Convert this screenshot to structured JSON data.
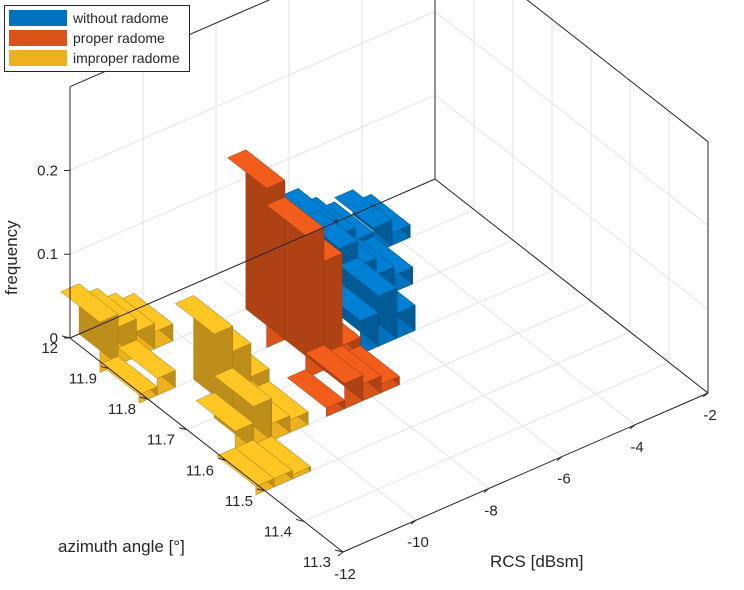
{
  "chart_data": {
    "type": "bar3d",
    "title": "",
    "xlabel": "RCS [dBsm]",
    "ylabel": "azimuth angle [°]",
    "zlabel": "frequency",
    "x_ticks": [
      "-12",
      "-10",
      "-8",
      "-6",
      "-4",
      "-2"
    ],
    "y_ticks": [
      "11.3",
      "11.4",
      "11.5",
      "11.6",
      "11.7",
      "11.8",
      "11.9",
      "12"
    ],
    "z_ticks": [
      "0",
      "0.1",
      "0.2"
    ],
    "xlim": [
      -12,
      -2
    ],
    "ylim": [
      11.3,
      12
    ],
    "zlim": [
      0,
      0.3
    ],
    "grid": true,
    "legend_position": "top-left",
    "series": [
      {
        "name": "without radome",
        "color": "#0072BD",
        "bars": [
          {
            "rcs": -7.5,
            "azimuth": 11.75,
            "frequency": 0.02
          },
          {
            "rcs": -7.0,
            "azimuth": 11.75,
            "frequency": 0.04
          },
          {
            "rcs": -6.5,
            "azimuth": 11.75,
            "frequency": 0.06
          },
          {
            "rcs": -6.0,
            "azimuth": 11.75,
            "frequency": 0.03
          },
          {
            "rcs": -6.5,
            "azimuth": 11.85,
            "frequency": 0.08
          },
          {
            "rcs": -6.0,
            "azimuth": 11.85,
            "frequency": 0.05
          },
          {
            "rcs": -5.5,
            "azimuth": 11.85,
            "frequency": 0.03
          },
          {
            "rcs": -5.0,
            "azimuth": 11.85,
            "frequency": 0.02
          },
          {
            "rcs": -6.0,
            "azimuth": 11.95,
            "frequency": 0.06
          },
          {
            "rcs": -5.5,
            "azimuth": 11.95,
            "frequency": 0.04
          },
          {
            "rcs": -5.0,
            "azimuth": 11.95,
            "frequency": 0.025
          },
          {
            "rcs": -4.5,
            "azimuth": 11.95,
            "frequency": 0.03
          },
          {
            "rcs": -4.0,
            "azimuth": 11.95,
            "frequency": 0.015
          }
        ]
      },
      {
        "name": "proper radome",
        "color": "#D95319",
        "bars": [
          {
            "rcs": -9.0,
            "azimuth": 11.65,
            "frequency": 0.01
          },
          {
            "rcs": -8.5,
            "azimuth": 11.65,
            "frequency": 0.03
          },
          {
            "rcs": -8.0,
            "azimuth": 11.65,
            "frequency": 0.02
          },
          {
            "rcs": -7.5,
            "azimuth": 11.65,
            "frequency": 0.01
          },
          {
            "rcs": -8.5,
            "azimuth": 11.75,
            "frequency": 0.17
          },
          {
            "rcs": -8.0,
            "azimuth": 11.75,
            "frequency": 0.13
          },
          {
            "rcs": -7.5,
            "azimuth": 11.75,
            "frequency": 0.02
          },
          {
            "rcs": -8.5,
            "azimuth": 11.85,
            "frequency": 0.19
          },
          {
            "rcs": -8.0,
            "azimuth": 11.85,
            "frequency": 0.14
          }
        ]
      },
      {
        "name": "improper radome",
        "color": "#EDB120",
        "bars": [
          {
            "rcs": -12.0,
            "azimuth": 11.55,
            "frequency": 0.01
          },
          {
            "rcs": -11.5,
            "azimuth": 11.55,
            "frequency": 0.01
          },
          {
            "rcs": -11.0,
            "azimuth": 11.55,
            "frequency": 0.005
          },
          {
            "rcs": -11.5,
            "azimuth": 11.65,
            "frequency": 0.03
          },
          {
            "rcs": -11.0,
            "azimuth": 11.65,
            "frequency": 0.05
          },
          {
            "rcs": -10.5,
            "azimuth": 11.65,
            "frequency": 0.02
          },
          {
            "rcs": -10.0,
            "azimuth": 11.65,
            "frequency": 0.015
          },
          {
            "rcs": -11.0,
            "azimuth": 11.75,
            "frequency": 0.1
          },
          {
            "rcs": -10.5,
            "azimuth": 11.75,
            "frequency": 0.07
          },
          {
            "rcs": -10.0,
            "azimuth": 11.75,
            "frequency": 0.03
          },
          {
            "rcs": -12.0,
            "azimuth": 11.85,
            "frequency": 0.01
          },
          {
            "rcs": -11.5,
            "azimuth": 11.85,
            "frequency": 0.02
          },
          {
            "rcs": -12.0,
            "azimuth": 11.95,
            "frequency": 0.06
          },
          {
            "rcs": -11.5,
            "azimuth": 11.95,
            "frequency": 0.045
          },
          {
            "rcs": -11.0,
            "azimuth": 11.95,
            "frequency": 0.03
          },
          {
            "rcs": -10.5,
            "azimuth": 11.95,
            "frequency": 0.02
          }
        ]
      }
    ]
  }
}
